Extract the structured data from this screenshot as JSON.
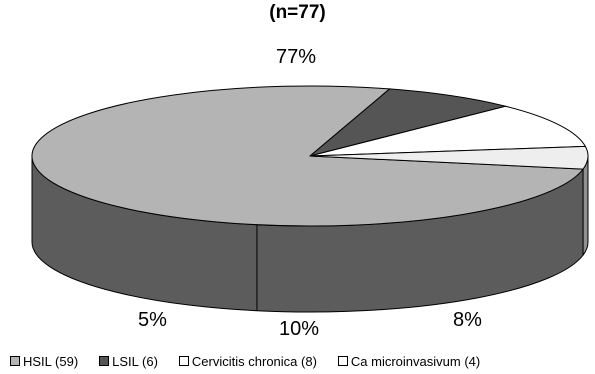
{
  "chart_data": {
    "type": "pie",
    "style": "3d",
    "title": "(n=77)",
    "categories": [
      "HSIL (59)",
      "LSIL (6)",
      "Cervicitis chronica (8)",
      "Ca microinvasivum (4)"
    ],
    "values": [
      59,
      6,
      8,
      4
    ],
    "percent_labels": [
      "77%",
      "8%",
      "10%",
      "5%"
    ],
    "colors": {
      "top": [
        "#b4b4b4",
        "#555555",
        "#ffffff",
        "#eeeeee"
      ],
      "side": [
        "#5c5c5c",
        "#2f2f2f",
        "#8c8c8c",
        "#909090"
      ],
      "legend": [
        "#b4b4b4",
        "#555555",
        "#ffffff",
        "#ffffff"
      ]
    },
    "legend_position": "bottom"
  }
}
